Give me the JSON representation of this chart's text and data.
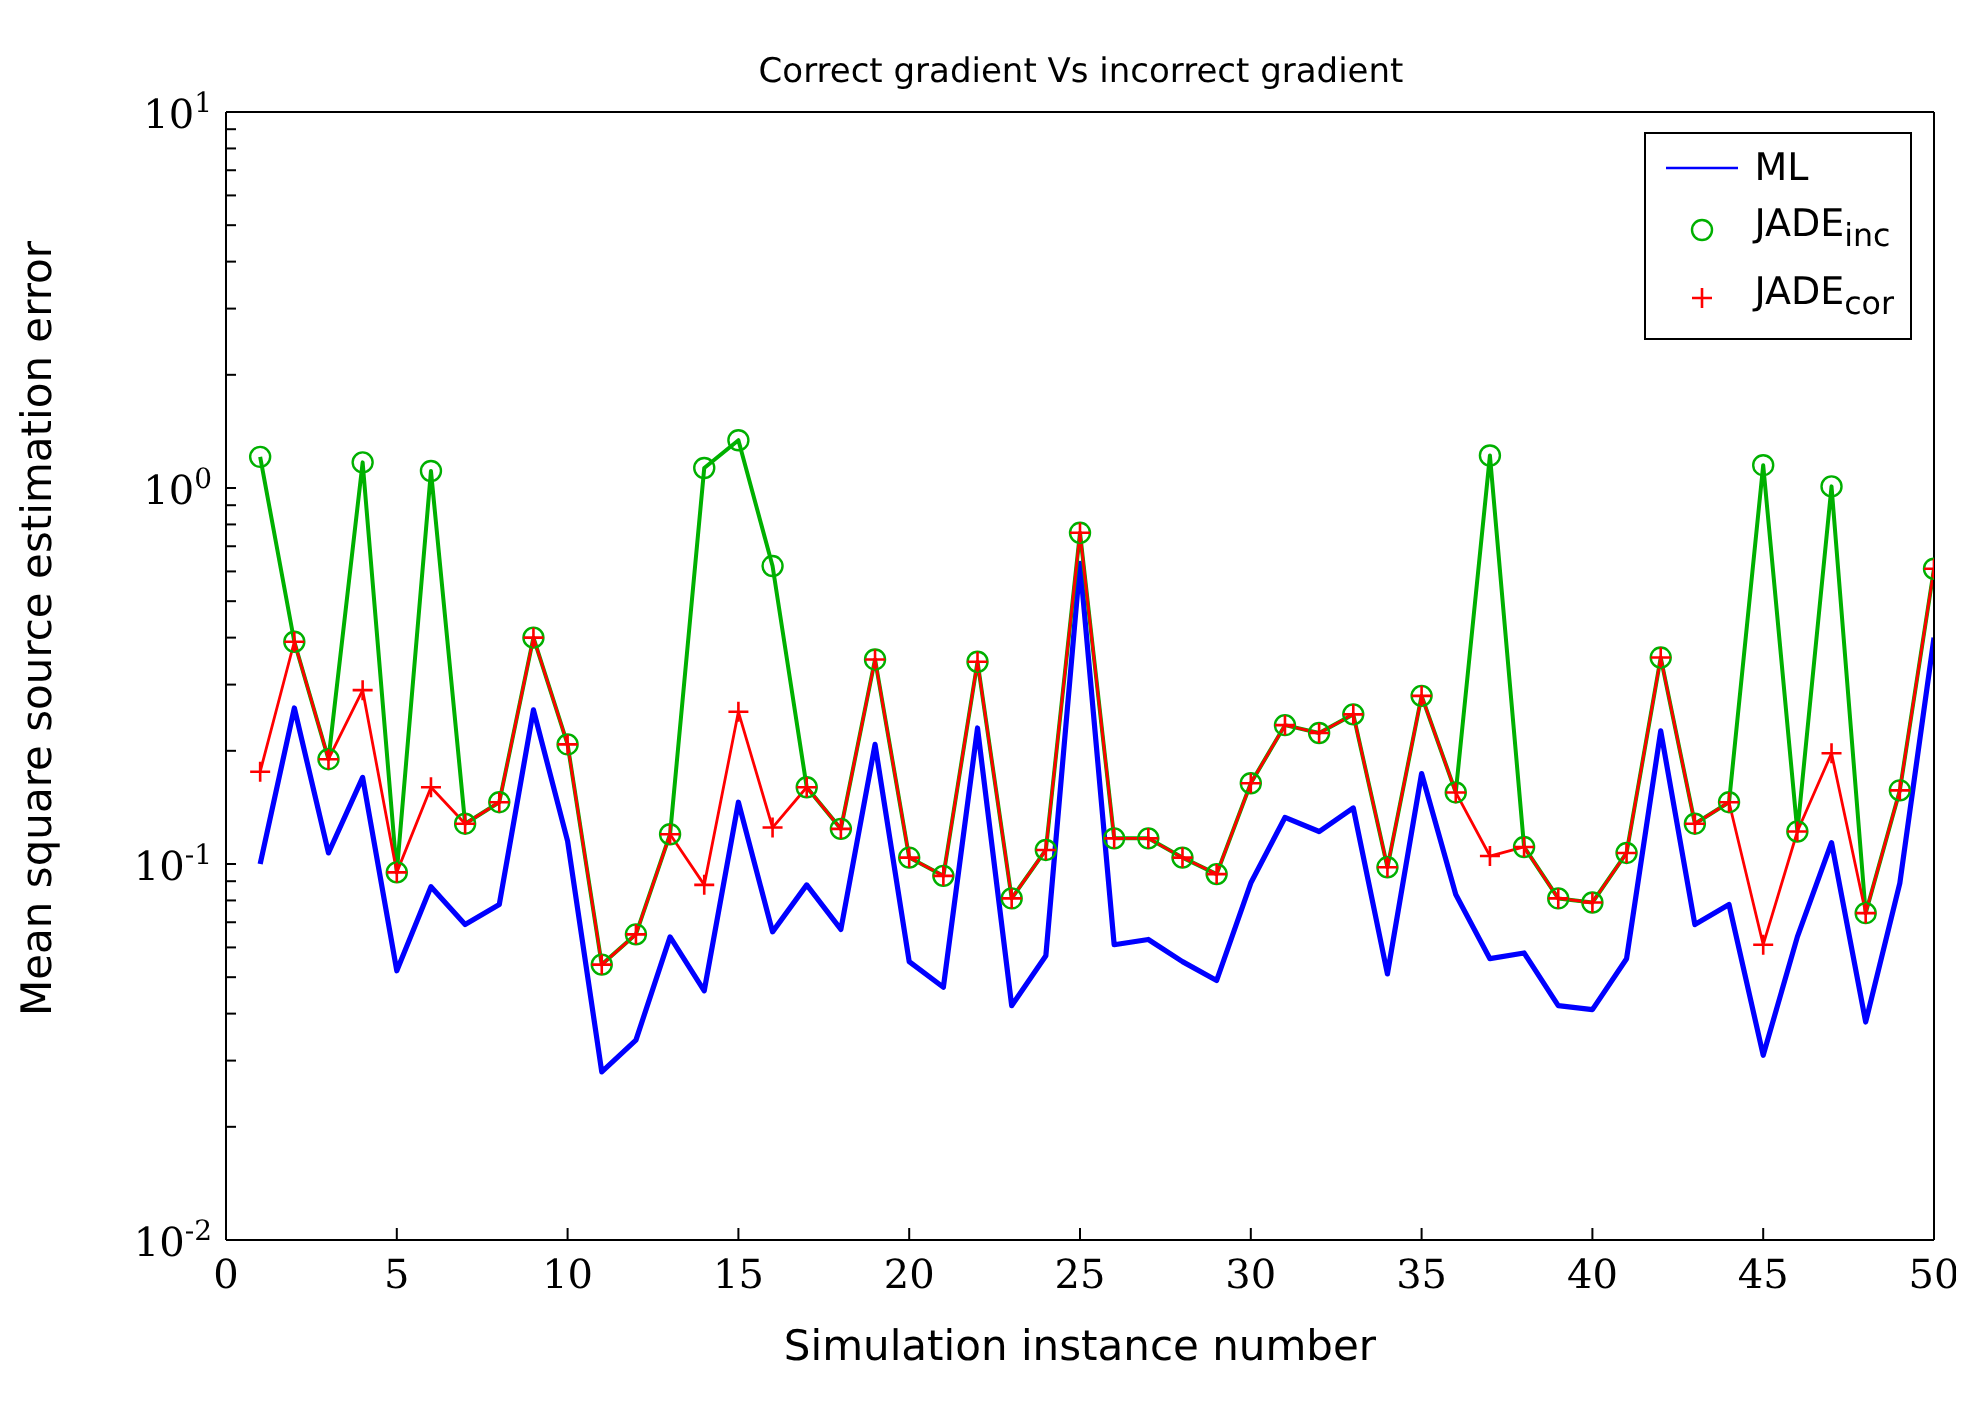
{
  "chart_data": {
    "type": "line",
    "title": "Correct gradient Vs incorrect gradient",
    "xlabel": "Simulation instance number",
    "ylabel": "Mean square source estimation error",
    "x": [
      1,
      2,
      3,
      4,
      5,
      6,
      7,
      8,
      9,
      10,
      11,
      12,
      13,
      14,
      15,
      16,
      17,
      18,
      19,
      20,
      21,
      22,
      23,
      24,
      25,
      26,
      27,
      28,
      29,
      30,
      31,
      32,
      33,
      34,
      35,
      36,
      37,
      38,
      39,
      40,
      41,
      42,
      43,
      44,
      45,
      46,
      47,
      48,
      49,
      50
    ],
    "series": [
      {
        "name": "ML",
        "color": "#0000ff",
        "marker": "none",
        "values": [
          0.1,
          0.26,
          0.107,
          0.17,
          0.052,
          0.087,
          0.069,
          0.078,
          0.257,
          0.115,
          0.028,
          0.034,
          0.064,
          0.046,
          0.146,
          0.066,
          0.088,
          0.067,
          0.208,
          0.055,
          0.047,
          0.23,
          0.042,
          0.057,
          0.63,
          0.061,
          0.063,
          0.055,
          0.049,
          0.089,
          0.133,
          0.122,
          0.141,
          0.051,
          0.174,
          0.083,
          0.056,
          0.058,
          0.042,
          0.041,
          0.056,
          0.226,
          0.069,
          0.078,
          0.031,
          0.064,
          0.114,
          0.038,
          0.089,
          0.4
        ]
      },
      {
        "name": "JADE$_{inc}$",
        "color": "#00b000",
        "marker": "circle",
        "values": [
          1.21,
          0.39,
          0.19,
          1.17,
          0.095,
          1.11,
          0.128,
          0.146,
          0.4,
          0.208,
          0.054,
          0.065,
          0.12,
          1.13,
          1.34,
          0.62,
          0.16,
          0.124,
          0.35,
          0.104,
          0.093,
          0.345,
          0.081,
          0.109,
          0.76,
          0.117,
          0.117,
          0.104,
          0.094,
          0.164,
          0.234,
          0.223,
          0.25,
          0.098,
          0.28,
          0.155,
          1.22,
          0.111,
          0.081,
          0.079,
          0.107,
          0.354,
          0.128,
          0.146,
          1.15,
          0.122,
          1.01,
          0.074,
          0.157,
          0.61
        ]
      },
      {
        "name": "JADE$_{cor}$",
        "color": "#ff0000",
        "marker": "cross",
        "values": [
          0.176,
          0.39,
          0.19,
          0.29,
          0.095,
          0.16,
          0.128,
          0.146,
          0.4,
          0.208,
          0.054,
          0.065,
          0.12,
          0.088,
          0.254,
          0.125,
          0.16,
          0.124,
          0.35,
          0.104,
          0.093,
          0.345,
          0.081,
          0.109,
          0.76,
          0.117,
          0.117,
          0.104,
          0.094,
          0.164,
          0.234,
          0.223,
          0.25,
          0.098,
          0.28,
          0.155,
          0.105,
          0.111,
          0.081,
          0.079,
          0.107,
          0.354,
          0.128,
          0.146,
          0.061,
          0.122,
          0.197,
          0.074,
          0.157,
          0.61
        ]
      }
    ],
    "log": "y",
    "xlim": [
      0,
      50
    ],
    "xticks": [
      0,
      5,
      10,
      15,
      20,
      25,
      30,
      35,
      40,
      45,
      50
    ],
    "ylim": [
      0.01,
      10
    ],
    "yticks": [
      {
        "value": 0.01,
        "label": "10$^{-2}$"
      },
      {
        "value": 0.02,
        "label": null
      },
      {
        "value": 0.03,
        "label": null
      },
      {
        "value": 0.04,
        "label": null
      },
      {
        "value": 0.05,
        "label": null
      },
      {
        "value": 0.06,
        "label": null
      },
      {
        "value": 0.07,
        "label": null
      },
      {
        "value": 0.08,
        "label": null
      },
      {
        "value": 0.09,
        "label": null
      },
      {
        "value": 0.1,
        "label": "10$^{-1}$"
      },
      {
        "value": 0.2,
        "label": null
      },
      {
        "value": 0.3,
        "label": null
      },
      {
        "value": 0.4,
        "label": null
      },
      {
        "value": 0.5,
        "label": null
      },
      {
        "value": 0.6,
        "label": null
      },
      {
        "value": 0.7,
        "label": null
      },
      {
        "value": 0.8,
        "label": null
      },
      {
        "value": 0.9,
        "label": null
      },
      {
        "value": 1,
        "label": "10$^{0}$"
      },
      {
        "value": 2,
        "label": null
      },
      {
        "value": 3,
        "label": null
      },
      {
        "value": 4,
        "label": null
      },
      {
        "value": 5,
        "label": null
      },
      {
        "value": 6,
        "label": null
      },
      {
        "value": 7,
        "label": null
      },
      {
        "value": 8,
        "label": null
      },
      {
        "value": 9,
        "label": null
      },
      {
        "value": 10,
        "label": "10$^{1}$"
      }
    ],
    "grid": false,
    "legend": "top right"
  }
}
